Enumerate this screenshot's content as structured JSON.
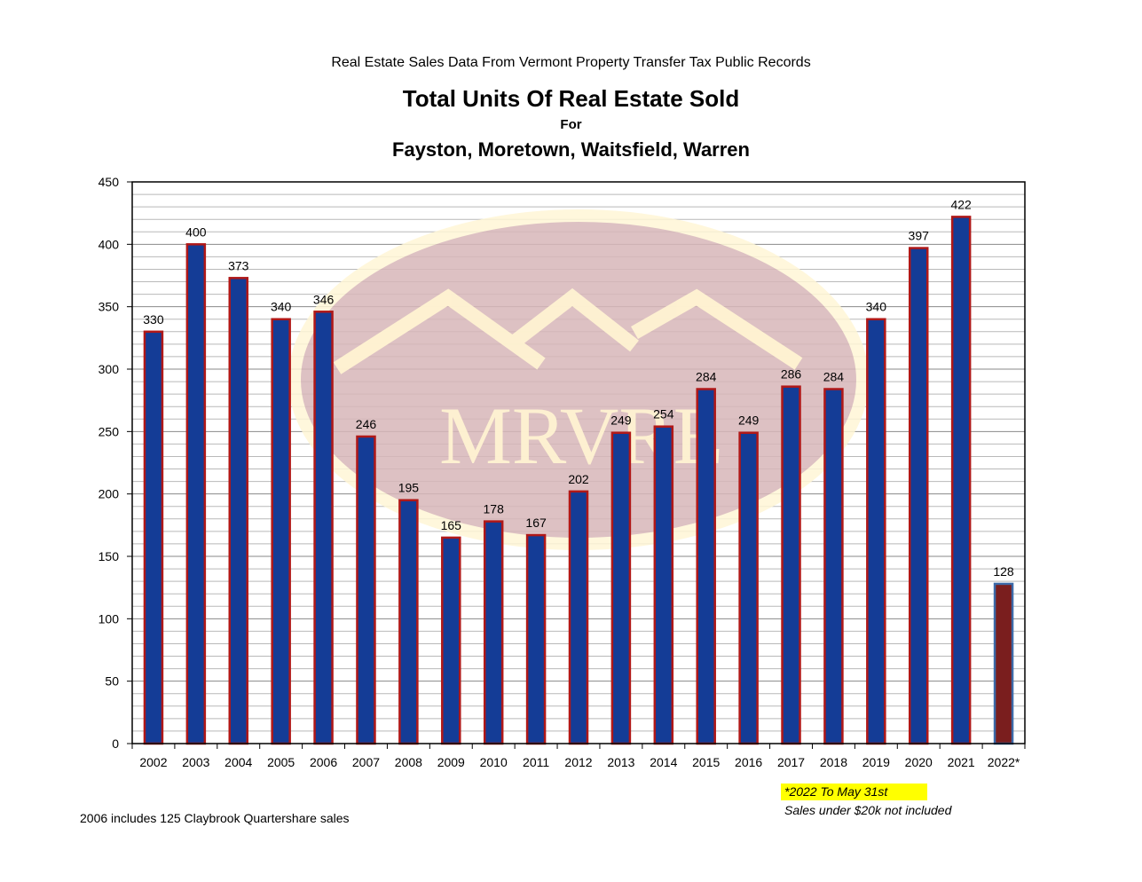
{
  "header": {
    "subtitle": "Real Estate Sales Data From Vermont Property Transfer Tax Public Records",
    "title": "Total Units Of Real Estate Sold",
    "title_for": "For",
    "towns": "Fayston, Moretown, Waitsfield, Warren"
  },
  "watermark": {
    "text": "MRVRE",
    "icon": "mountain-logo-icon"
  },
  "notes": {
    "highlight": "*2022 To May 31st",
    "exclusion": "Sales under $20k not included",
    "footnote": "2006 includes 125 Claybrook Quartershare sales"
  },
  "colors": {
    "bar_fill": "#143c96",
    "bar_border": "#b01818",
    "partial_bar_fill": "#7a1e1e",
    "partial_bar_border": "#3c6aa8",
    "highlight": "#ffff00"
  },
  "chart_data": {
    "type": "bar",
    "categories": [
      "2002",
      "2003",
      "2004",
      "2005",
      "2006",
      "2007",
      "2008",
      "2009",
      "2010",
      "2011",
      "2012",
      "2013",
      "2014",
      "2015",
      "2016",
      "2017",
      "2018",
      "2019",
      "2020",
      "2021",
      "2022*"
    ],
    "values": [
      330,
      400,
      373,
      340,
      346,
      246,
      195,
      165,
      178,
      167,
      202,
      249,
      254,
      284,
      249,
      286,
      284,
      340,
      397,
      422,
      128
    ],
    "ylim": [
      0,
      450
    ],
    "yticks": [
      0,
      50,
      100,
      150,
      200,
      250,
      300,
      350,
      400,
      450
    ],
    "grid": true,
    "data_labels": true,
    "legend": "none"
  }
}
